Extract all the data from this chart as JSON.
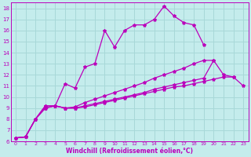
{
  "xlabel": "Windchill (Refroidissement éolien,°C)",
  "ylabel": "",
  "xlim": [
    -0.5,
    23.5
  ],
  "ylim": [
    6,
    18.5
  ],
  "xticks": [
    0,
    1,
    2,
    3,
    4,
    5,
    6,
    7,
    8,
    9,
    10,
    11,
    12,
    13,
    14,
    15,
    16,
    17,
    18,
    19,
    20,
    21,
    22,
    23
  ],
  "yticks": [
    6,
    7,
    8,
    9,
    10,
    11,
    12,
    13,
    14,
    15,
    16,
    17,
    18
  ],
  "bg_color": "#c4ecec",
  "grid_color": "#a8d8d8",
  "line_color": "#bb00bb",
  "line_width": 0.9,
  "marker": "*",
  "marker_size": 3.0,
  "lines": [
    {
      "x": [
        0,
        1,
        2,
        3,
        4,
        5,
        6,
        7,
        8,
        9,
        10,
        11,
        12,
        13,
        14,
        15,
        16,
        17,
        18,
        19
      ],
      "y": [
        6.3,
        6.4,
        8.0,
        9.0,
        9.2,
        11.2,
        10.8,
        12.7,
        13.0,
        16.0,
        14.5,
        16.0,
        16.5,
        16.5,
        17.0,
        18.2,
        17.3,
        16.7,
        16.5,
        14.7
      ]
    },
    {
      "x": [
        0,
        1,
        2,
        3,
        4,
        5,
        6,
        7,
        8,
        9,
        10,
        11,
        12,
        13,
        14,
        15,
        16,
        17,
        18,
        19,
        20
      ],
      "y": [
        6.3,
        6.4,
        8.0,
        9.0,
        9.2,
        9.0,
        9.1,
        9.5,
        9.8,
        10.1,
        10.4,
        10.7,
        11.0,
        11.3,
        11.7,
        12.0,
        12.3,
        12.6,
        13.0,
        13.3,
        13.3
      ]
    },
    {
      "x": [
        0,
        1,
        2,
        3,
        4,
        5,
        6,
        7,
        8,
        9,
        10,
        11,
        12,
        13,
        14,
        15,
        16,
        17,
        18,
        19,
        20,
        21,
        22
      ],
      "y": [
        6.3,
        6.4,
        8.0,
        9.2,
        9.2,
        9.0,
        9.0,
        9.2,
        9.4,
        9.6,
        9.8,
        10.0,
        10.2,
        10.4,
        10.7,
        10.9,
        11.1,
        11.3,
        11.5,
        11.7,
        13.3,
        12.0,
        11.8
      ]
    },
    {
      "x": [
        0,
        1,
        2,
        3,
        4,
        5,
        6,
        7,
        8,
        9,
        10,
        11,
        12,
        13,
        14,
        15,
        16,
        17,
        18,
        19,
        20,
        21,
        22,
        23
      ],
      "y": [
        6.3,
        6.4,
        8.0,
        9.2,
        9.2,
        9.0,
        9.0,
        9.1,
        9.3,
        9.5,
        9.7,
        9.9,
        10.1,
        10.3,
        10.5,
        10.7,
        10.9,
        11.0,
        11.2,
        11.4,
        11.6,
        11.8,
        11.8,
        11.0
      ]
    }
  ]
}
